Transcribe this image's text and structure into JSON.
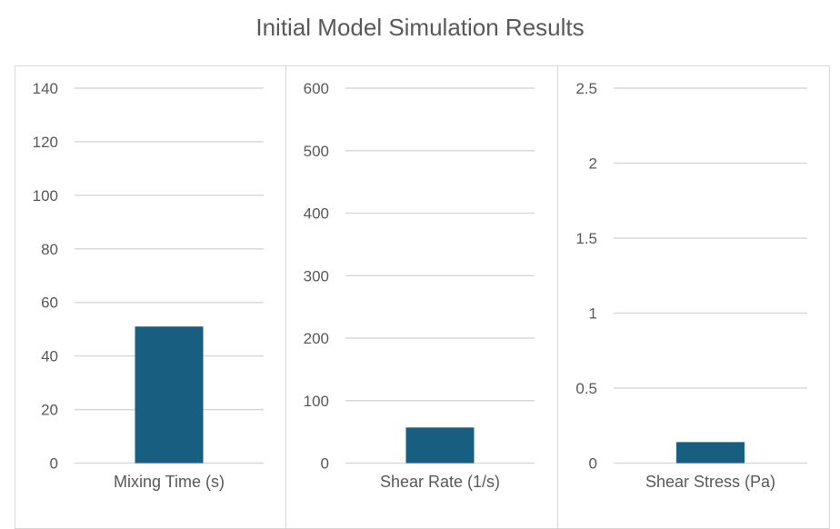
{
  "title": "Initial Model Simulation Results",
  "colors": {
    "bar": "#175e80",
    "grid": "#d9d9d9",
    "text": "#595959"
  },
  "chart_data": [
    {
      "type": "bar",
      "categories": [
        "Mixing Time (s)"
      ],
      "values": [
        51
      ],
      "ylim": [
        0,
        140
      ],
      "ticks": [
        "0",
        "20",
        "40",
        "60",
        "80",
        "100",
        "120",
        "140"
      ],
      "grid": true
    },
    {
      "type": "bar",
      "categories": [
        "Shear Rate (1/s)"
      ],
      "values": [
        57
      ],
      "ylim": [
        0,
        600
      ],
      "ticks": [
        "0",
        "100",
        "200",
        "300",
        "400",
        "500",
        "600"
      ],
      "grid": true
    },
    {
      "type": "bar",
      "categories": [
        "Shear Stress (Pa)"
      ],
      "values": [
        0.14
      ],
      "ylim": [
        0,
        2.5
      ],
      "ticks": [
        "0",
        "0.5",
        "1",
        "1.5",
        "2",
        "2.5"
      ],
      "grid": true
    }
  ]
}
